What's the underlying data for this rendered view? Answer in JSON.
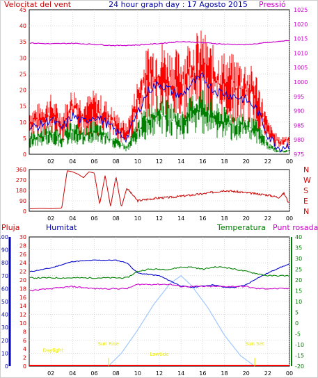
{
  "header": {
    "title": "24 hour graph day : 17 Agosto 2015",
    "wind_label": "Velocitat del vent",
    "pressure_label": "Pressió"
  },
  "footer_labels": {
    "rain": "Pluja",
    "humidity": "Humitat",
    "temperature": "Temperatura",
    "dewpoint": "Punt rosada"
  },
  "annotations": {
    "sunrise": "Sun Rise",
    "sunset": "Sun Set",
    "daylight": "Daylight",
    "lowtide": "Lowtide"
  },
  "colors": {
    "wind_gust": "#ff0000",
    "wind_avg": "#0000cc",
    "wind_low": "#008000",
    "pressure": "#cc00cc",
    "direction": "#cc0000",
    "humidity": "#0000cc",
    "temperature": "#008000",
    "dewpoint": "#cc00cc",
    "solar": "#a0c8ff",
    "rain": "#ff0000",
    "annotation": "#e8e800"
  },
  "chart_data": [
    {
      "type": "line",
      "title": "24 hour graph day : 17 Agosto 2015",
      "x_ticks": [
        "02",
        "04",
        "06",
        "08",
        "10",
        "12",
        "14",
        "16",
        "18",
        "20",
        "22",
        "00"
      ],
      "xlim": [
        0,
        24
      ],
      "ylabel_left": "Velocitat del vent",
      "ylim_left": [
        0,
        45
      ],
      "yticks_left": [
        "0",
        "5",
        "10",
        "15",
        "20",
        "25",
        "30",
        "35",
        "40",
        "45"
      ],
      "ylabel_right": "Pressió",
      "ylim_right": [
        975,
        1025
      ],
      "yticks_right": [
        "975",
        "980",
        "985",
        "990",
        "995",
        "1000",
        "1005",
        "1010",
        "1015",
        "1020",
        "1025"
      ],
      "grid": true,
      "series": [
        {
          "name": "gust",
          "axis": "left",
          "x": [
            0,
            1,
            2,
            3,
            4,
            5,
            6,
            7,
            8,
            9,
            10,
            11,
            12,
            13,
            14,
            15,
            16,
            17,
            18,
            19,
            20,
            21,
            22,
            23,
            24
          ],
          "values": [
            11,
            12,
            14,
            10,
            16,
            13,
            15,
            13,
            10,
            7,
            18,
            26,
            27,
            25,
            24,
            28,
            29,
            25,
            24,
            23,
            22,
            19,
            8,
            4,
            5
          ]
        },
        {
          "name": "avg",
          "axis": "left",
          "x": [
            0,
            1,
            2,
            3,
            4,
            5,
            6,
            7,
            8,
            9,
            10,
            11,
            12,
            13,
            14,
            15,
            16,
            17,
            18,
            19,
            20,
            21,
            22,
            23,
            24
          ],
          "values": [
            8,
            9,
            11,
            8,
            12,
            10,
            12,
            10,
            7,
            5,
            13,
            20,
            22,
            20,
            18,
            22,
            24,
            20,
            19,
            18,
            17,
            14,
            6,
            2,
            3
          ]
        },
        {
          "name": "low",
          "axis": "left",
          "x": [
            0,
            1,
            2,
            3,
            4,
            5,
            6,
            7,
            8,
            9,
            10,
            11,
            12,
            13,
            14,
            15,
            16,
            17,
            18,
            19,
            20,
            21,
            22,
            23,
            24
          ],
          "values": [
            5,
            6,
            7,
            5,
            8,
            6,
            8,
            6,
            4,
            2,
            8,
            12,
            14,
            12,
            10,
            14,
            16,
            12,
            11,
            10,
            9,
            8,
            3,
            1,
            1
          ]
        },
        {
          "name": "pressure",
          "axis": "right",
          "x": [
            0,
            2,
            4,
            6,
            8,
            10,
            12,
            14,
            16,
            18,
            20,
            22,
            24
          ],
          "values": [
            1013.5,
            1013.2,
            1013.4,
            1013,
            1012.6,
            1012.8,
            1013.3,
            1014,
            1013.6,
            1013.1,
            1012.9,
            1013.6,
            1014.4
          ]
        }
      ]
    },
    {
      "type": "line",
      "xlim": [
        0,
        24
      ],
      "x_ticks": [
        "02",
        "04",
        "06",
        "08",
        "10",
        "12",
        "14",
        "16",
        "18",
        "20",
        "22",
        "00"
      ],
      "ylim": [
        0,
        360
      ],
      "yticks": [
        "0",
        "90",
        "180",
        "270",
        "360"
      ],
      "yticks_right": [
        "N",
        "E",
        "S",
        "W",
        "N"
      ],
      "grid": true,
      "series": [
        {
          "name": "direction",
          "x": [
            0,
            1,
            2,
            3,
            3.5,
            4,
            4.5,
            5,
            5.5,
            6,
            6.5,
            7,
            7.5,
            8,
            8.5,
            9,
            10,
            11,
            12,
            13,
            14,
            15,
            16,
            17,
            18,
            19,
            20,
            21,
            22,
            22.5,
            23,
            23.5,
            24
          ],
          "values": [
            20,
            25,
            22,
            28,
            350,
            340,
            320,
            290,
            340,
            330,
            60,
            310,
            40,
            300,
            35,
            200,
            90,
            105,
            115,
            120,
            130,
            140,
            150,
            165,
            180,
            170,
            160,
            150,
            140,
            130,
            120,
            155,
            60
          ]
        }
      ]
    },
    {
      "type": "line",
      "xlim": [
        0,
        24
      ],
      "x_ticks": [
        "02",
        "04",
        "06",
        "08",
        "10",
        "12",
        "14",
        "16",
        "18",
        "20",
        "22",
        "00"
      ],
      "ylim_humidity": [
        0,
        100
      ],
      "yticks_humidity": [
        "0",
        "10",
        "20",
        "30",
        "40",
        "50",
        "60",
        "70",
        "80",
        "90",
        "100"
      ],
      "ylim_rain": [
        0,
        30
      ],
      "yticks_rain": [
        "0",
        "2",
        "4",
        "6",
        "8",
        "10",
        "12",
        "14",
        "16",
        "18",
        "20",
        "22",
        "24",
        "26",
        "28",
        "30"
      ],
      "ylim_temp": [
        -20,
        40
      ],
      "yticks_temp": [
        "-20",
        "-15",
        "-10",
        "-5",
        "0",
        "5",
        "10",
        "15",
        "20",
        "25",
        "30",
        "35",
        "40"
      ],
      "grid": true,
      "series": [
        {
          "name": "humidity",
          "axis": "humidity",
          "x": [
            0,
            2,
            4,
            6,
            8,
            9,
            10,
            11,
            12,
            13,
            14,
            15,
            16,
            17,
            18,
            19,
            20,
            21,
            22,
            23,
            24
          ],
          "values": [
            73,
            76,
            81,
            82,
            82,
            80,
            72,
            71,
            70,
            66,
            62,
            61,
            62,
            63,
            61,
            61,
            63,
            68,
            72,
            76,
            79
          ]
        },
        {
          "name": "temperature",
          "axis": "temp",
          "x": [
            0,
            2,
            4,
            6,
            8,
            9,
            10,
            11,
            12,
            13,
            14,
            15,
            16,
            17,
            18,
            19,
            20,
            21,
            22,
            23,
            24
          ],
          "values": [
            21,
            21,
            21,
            21,
            21,
            21,
            24,
            25,
            25,
            25,
            26,
            26,
            25,
            26,
            26,
            25,
            24,
            23,
            22,
            22,
            22
          ]
        },
        {
          "name": "dewpoint",
          "axis": "temp",
          "x": [
            0,
            2,
            4,
            6,
            8,
            9,
            10,
            11,
            12,
            13,
            14,
            15,
            16,
            17,
            18,
            19,
            20,
            21,
            22,
            23,
            24
          ],
          "values": [
            15,
            16,
            17,
            16,
            16,
            16,
            18,
            18,
            18,
            18,
            17,
            17,
            17,
            17,
            17,
            17,
            17,
            16,
            16,
            16,
            16
          ]
        },
        {
          "name": "solar",
          "axis": "humidity",
          "x": [
            7.3,
            8.5,
            10,
            11.5,
            13,
            14,
            15,
            16.5,
            18,
            19.5,
            20.8
          ],
          "values": [
            0,
            10,
            28,
            48,
            64,
            70,
            62,
            45,
            24,
            8,
            0
          ]
        }
      ],
      "annotations": [
        {
          "label": "Daylight",
          "x": 2.2,
          "y": 11
        },
        {
          "label": "Sun Rise",
          "x": 7.3,
          "y": 16
        },
        {
          "label": "Lowtide",
          "x": 12,
          "y": 8
        },
        {
          "label": "Sun Set",
          "x": 20.8,
          "y": 16
        }
      ]
    }
  ]
}
